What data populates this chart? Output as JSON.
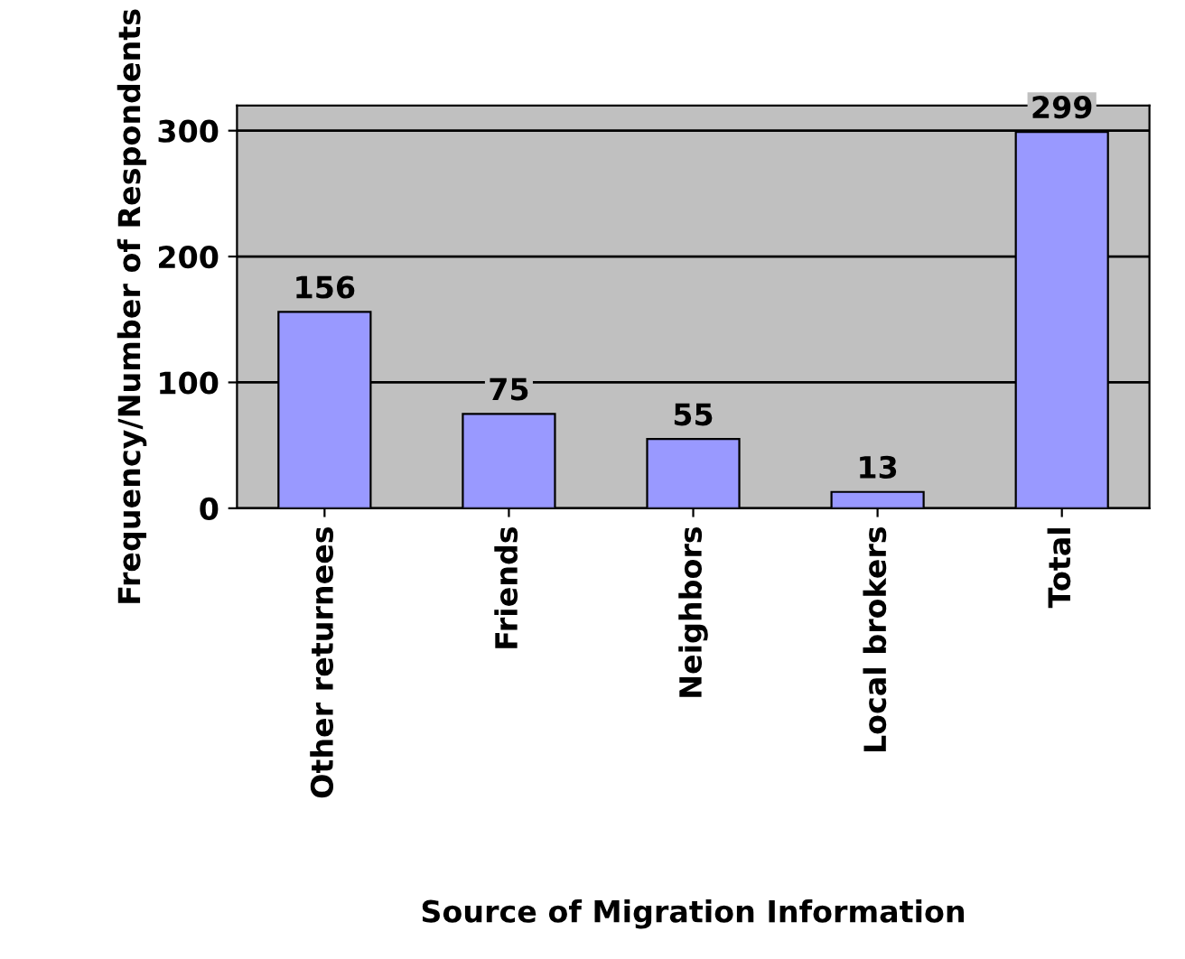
{
  "chart_data": {
    "type": "bar",
    "xlabel": "Source of Migration Information",
    "ylabel": "Frequency/Number of Respondents",
    "categories": [
      "Other returnees",
      "Friends",
      "Neighbors",
      "Local brokers",
      "Total"
    ],
    "values": [
      156,
      75,
      55,
      13,
      299
    ],
    "color": "#9999ff",
    "ylim": [
      0,
      320
    ],
    "yticks": [
      0,
      100,
      200,
      300
    ],
    "grid": "y",
    "data_labels": true
  }
}
